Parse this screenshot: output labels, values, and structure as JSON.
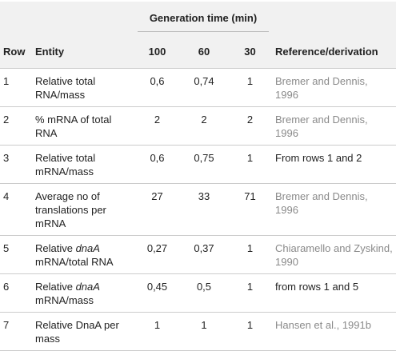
{
  "table": {
    "group_header": "Generation time (min)",
    "headers": [
      "Row",
      "Entity",
      "100",
      "60",
      "30",
      "Reference/derivation"
    ],
    "rows": [
      {
        "row": "1",
        "entity": [
          {
            "text": "Relative total RNA/mass"
          }
        ],
        "values": [
          "0,6",
          "0,74",
          "1"
        ],
        "reference": {
          "text": "Bremer and Dennis, 1996",
          "linked": true
        }
      },
      {
        "row": "2",
        "entity": [
          {
            "text": "% mRNA of total RNA"
          }
        ],
        "values": [
          "2",
          "2",
          "2"
        ],
        "reference": {
          "text": "Bremer and Dennis, 1996",
          "linked": true
        }
      },
      {
        "row": "3",
        "entity": [
          {
            "text": "Relative total mRNA/mass"
          }
        ],
        "values": [
          "0,6",
          "0,75",
          "1"
        ],
        "reference": {
          "text": "From rows 1 and 2",
          "linked": false
        }
      },
      {
        "row": "4",
        "entity": [
          {
            "text": "Average no of translations per mRNA"
          }
        ],
        "values": [
          "27",
          "33",
          "71"
        ],
        "reference": {
          "text": "Bremer and Dennis, 1996",
          "linked": true
        }
      },
      {
        "row": "5",
        "entity": [
          {
            "text": "Relative "
          },
          {
            "text": "dnaA",
            "italic": true
          },
          {
            "text": " mRNA/total RNA"
          }
        ],
        "values": [
          "0,27",
          "0,37",
          "1"
        ],
        "reference": {
          "text": "Chiaramello and Zyskind, 1990",
          "linked": true
        }
      },
      {
        "row": "6",
        "entity": [
          {
            "text": "Relative "
          },
          {
            "text": "dnaA",
            "italic": true
          },
          {
            "text": " mRNA/mass"
          }
        ],
        "values": [
          "0,45",
          "0,5",
          "1"
        ],
        "reference": {
          "text": "from rows 1 and 5",
          "linked": false
        }
      },
      {
        "row": "7",
        "entity": [
          {
            "text": "Relative DnaA per mass"
          }
        ],
        "values": [
          "1",
          "1",
          "1"
        ],
        "reference": {
          "text": "Hansen et al., 1991b",
          "linked": true
        }
      }
    ]
  }
}
